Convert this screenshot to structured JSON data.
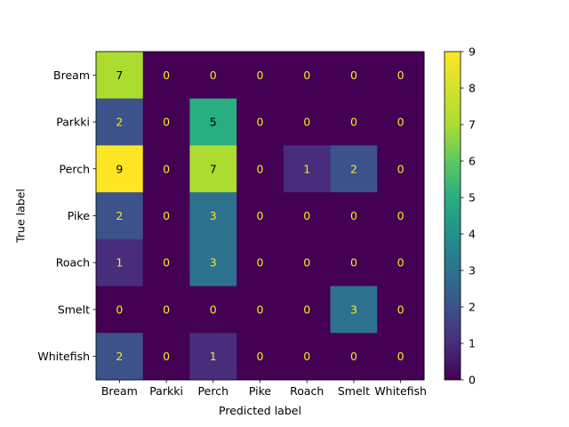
{
  "chart_data": {
    "type": "heatmap",
    "title": "",
    "xlabel": "Predicted label",
    "ylabel": "True label",
    "x_categories": [
      "Bream",
      "Parkki",
      "Perch",
      "Pike",
      "Roach",
      "Smelt",
      "Whitefish"
    ],
    "y_categories": [
      "Bream",
      "Parkki",
      "Perch",
      "Pike",
      "Roach",
      "Smelt",
      "Whitefish"
    ],
    "values": [
      [
        7,
        0,
        0,
        0,
        0,
        0,
        0
      ],
      [
        2,
        0,
        5,
        0,
        0,
        0,
        0
      ],
      [
        9,
        0,
        7,
        0,
        1,
        2,
        0
      ],
      [
        2,
        0,
        3,
        0,
        0,
        0,
        0
      ],
      [
        1,
        0,
        3,
        0,
        0,
        0,
        0
      ],
      [
        0,
        0,
        0,
        0,
        0,
        3,
        0
      ],
      [
        2,
        0,
        1,
        0,
        0,
        0,
        0
      ]
    ],
    "colormap": "viridis",
    "colorbar": {
      "min": 0,
      "max": 9,
      "ticks": [
        "0",
        "1",
        "2",
        "3",
        "4",
        "5",
        "6",
        "7",
        "8",
        "9"
      ]
    },
    "text_colors": {
      "dark_cell": "#fde725",
      "light_cell": "#000000"
    }
  }
}
